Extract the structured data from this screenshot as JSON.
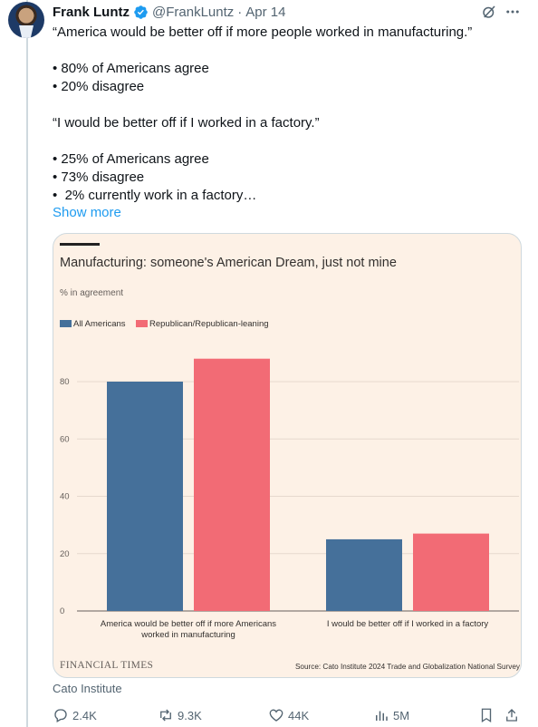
{
  "author": {
    "name": "Frank Luntz",
    "handle": "@FrankLuntz",
    "separator": "·",
    "date": "Apr 14"
  },
  "tweet": {
    "lines": [
      "“America would be better off if more people worked in manufacturing.”",
      "",
      "• 80% of Americans agree",
      "• 20% disagree",
      "",
      "“I would be better off if I worked in a factory.”",
      "",
      "• 25% of Americans agree",
      "• 73% disagree",
      "•  2% currently work in a factory…"
    ],
    "show_more": "Show more"
  },
  "card": {
    "publisher": "FINANCIAL TIMES",
    "source": "Source: Cato Institute 2024 Trade and Globalization National Survey"
  },
  "source_label": "Cato Institute",
  "actions": {
    "replies": "2.4K",
    "reposts": "9.3K",
    "likes": "44K",
    "views": "5M"
  },
  "colors": {
    "link": "#1d9bf0",
    "verified": "#1d9bf0",
    "series_all": "#45709a",
    "series_rep": "#f26b75",
    "card_bg": "#fdf1e6"
  },
  "chart_data": {
    "type": "bar",
    "title": "Manufacturing: someone's American Dream, just not mine",
    "ylabel": "% in agreement",
    "categories": [
      [
        "America would be better off if more Americans",
        "worked in manufacturing"
      ],
      [
        "I would be better off if I worked in a factory"
      ]
    ],
    "series": [
      {
        "name": "All Americans",
        "values": [
          80,
          25
        ]
      },
      {
        "name": "Republican/Republican-leaning",
        "values": [
          88,
          27
        ]
      }
    ],
    "ylim": [
      0,
      100
    ],
    "yticks": [
      0,
      20,
      40,
      60,
      80
    ],
    "grid": true,
    "legend": "top-left"
  }
}
